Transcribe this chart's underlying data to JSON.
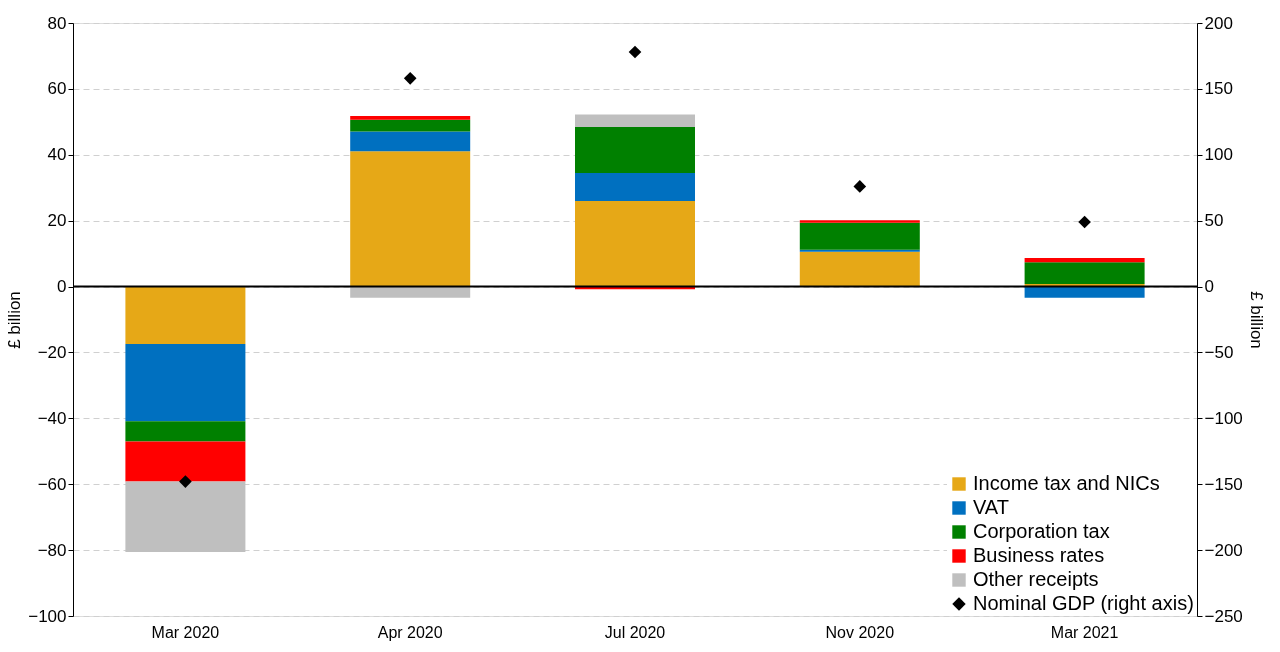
{
  "chart_data": {
    "type": "bar",
    "stacked": true,
    "categories": [
      "Mar 2020",
      "Apr 2020",
      "Jul 2020",
      "Nov 2020",
      "Mar 2021"
    ],
    "ylabel": "£ billion",
    "y2label": "£ billion",
    "ylim": [
      -100,
      80
    ],
    "yticks": [
      -100,
      -80,
      -60,
      -40,
      -20,
      0,
      20,
      40,
      60,
      80
    ],
    "y2lim": [
      -250,
      200
    ],
    "y2ticks": [
      -250,
      -200,
      -150,
      -100,
      -50,
      0,
      50,
      100,
      150,
      200
    ],
    "grid": "y",
    "legend": "bottom right",
    "ref_lines": [
      {
        "axis": "y",
        "value": 0,
        "color": "#000000"
      }
    ],
    "series": [
      {
        "name": "Income tax and NICs",
        "color": "#e6a817",
        "values": [
          -17.4,
          41.1,
          26.0,
          10.6,
          0.8
        ]
      },
      {
        "name": "VAT",
        "color": "#0070c0",
        "values": [
          -23.5,
          6.0,
          8.5,
          0.6,
          -3.4
        ]
      },
      {
        "name": "Corporation tax",
        "color": "#008000",
        "values": [
          -6.1,
          3.5,
          13.9,
          8.2,
          6.6
        ]
      },
      {
        "name": "Business rates",
        "color": "#ff0000",
        "values": [
          -12.2,
          1.2,
          -0.8,
          0.7,
          1.3
        ]
      },
      {
        "name": "Other receipts",
        "color": "#bfbfbf",
        "values": [
          -21.4,
          -3.4,
          3.8,
          null,
          null
        ]
      },
      {
        "name": "Nominal GDP (right axis)",
        "color": "#000000",
        "type": "scatter",
        "axis": "y2",
        "marker": "diamond",
        "values": [
          -148,
          158,
          178,
          76,
          49
        ]
      }
    ]
  }
}
